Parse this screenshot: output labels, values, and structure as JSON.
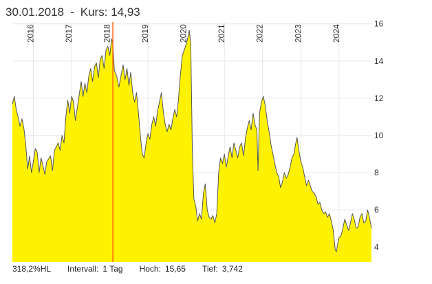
{
  "header": {
    "date": "30.01.2018",
    "separator": "-",
    "kurs_label": "Kurs:",
    "kurs_value": "14,93"
  },
  "footer": {
    "range_label": "318,2%HL",
    "interval_label": "Intervall:",
    "interval_value": "1 Tag",
    "high_label": "Hoch:",
    "high_value": "15,65",
    "low_label": "Tief:",
    "low_value": "3,742"
  },
  "colors": {
    "area_fill": "#fff200",
    "line": "#555555",
    "marker": "#ff6a13",
    "grid": "#e6e6e6"
  },
  "chart_data": {
    "type": "area",
    "title": "",
    "xlabel": "",
    "ylabel": "",
    "xlim": [
      2015.45,
      2024.85
    ],
    "ylim": [
      3.2,
      16.1
    ],
    "y_ticks": [
      "4",
      "6",
      "8",
      "10",
      "12",
      "14",
      "16"
    ],
    "x_ticks": [
      "2016",
      "2017",
      "2018",
      "2019",
      "2020",
      "2021",
      "2022",
      "2023",
      "2024"
    ],
    "marker": {
      "x": 2018.08,
      "label": "30.01.2018",
      "value": 14.93
    },
    "series": [
      {
        "points": [
          [
            2015.45,
            11.7
          ],
          [
            2015.5,
            12.1
          ],
          [
            2015.55,
            11.4
          ],
          [
            2015.6,
            11.0
          ],
          [
            2015.65,
            10.5
          ],
          [
            2015.7,
            10.9
          ],
          [
            2015.75,
            10.4
          ],
          [
            2015.8,
            9.5
          ],
          [
            2015.85,
            8.2
          ],
          [
            2015.9,
            8.9
          ],
          [
            2015.95,
            8.0
          ],
          [
            2016.0,
            8.6
          ],
          [
            2016.05,
            9.3
          ],
          [
            2016.1,
            9.1
          ],
          [
            2016.15,
            8.0
          ],
          [
            2016.2,
            8.8
          ],
          [
            2016.25,
            8.4
          ],
          [
            2016.3,
            7.9
          ],
          [
            2016.35,
            8.6
          ],
          [
            2016.45,
            8.9
          ],
          [
            2016.5,
            8.1
          ],
          [
            2016.55,
            9.2
          ],
          [
            2016.65,
            9.6
          ],
          [
            2016.7,
            9.2
          ],
          [
            2016.75,
            10.0
          ],
          [
            2016.8,
            9.6
          ],
          [
            2016.85,
            11.0
          ],
          [
            2016.9,
            11.9
          ],
          [
            2016.95,
            11.2
          ],
          [
            2017.0,
            12.1
          ],
          [
            2017.05,
            11.8
          ],
          [
            2017.1,
            10.8
          ],
          [
            2017.15,
            11.5
          ],
          [
            2017.2,
            12.2
          ],
          [
            2017.25,
            12.9
          ],
          [
            2017.3,
            12.1
          ],
          [
            2017.35,
            12.8
          ],
          [
            2017.4,
            12.3
          ],
          [
            2017.45,
            13.2
          ],
          [
            2017.5,
            13.6
          ],
          [
            2017.55,
            12.9
          ],
          [
            2017.6,
            13.7
          ],
          [
            2017.65,
            13.9
          ],
          [
            2017.7,
            13.1
          ],
          [
            2017.75,
            14.1
          ],
          [
            2017.8,
            14.3
          ],
          [
            2017.85,
            13.6
          ],
          [
            2017.9,
            14.6
          ],
          [
            2017.95,
            14.8
          ],
          [
            2018.0,
            14.3
          ],
          [
            2018.05,
            15.2
          ],
          [
            2018.08,
            14.93
          ],
          [
            2018.12,
            13.5
          ],
          [
            2018.18,
            13.2
          ],
          [
            2018.24,
            12.6
          ],
          [
            2018.3,
            13.3
          ],
          [
            2018.35,
            13.8
          ],
          [
            2018.4,
            13.0
          ],
          [
            2018.45,
            13.6
          ],
          [
            2018.5,
            12.7
          ],
          [
            2018.55,
            13.4
          ],
          [
            2018.6,
            12.3
          ],
          [
            2018.65,
            11.8
          ],
          [
            2018.7,
            12.3
          ],
          [
            2018.75,
            11.2
          ],
          [
            2018.8,
            10.0
          ],
          [
            2018.85,
            9.0
          ],
          [
            2018.9,
            8.8
          ],
          [
            2018.95,
            9.6
          ],
          [
            2019.0,
            10.1
          ],
          [
            2019.05,
            9.8
          ],
          [
            2019.1,
            10.6
          ],
          [
            2019.15,
            11.0
          ],
          [
            2019.2,
            10.5
          ],
          [
            2019.25,
            11.3
          ],
          [
            2019.3,
            11.8
          ],
          [
            2019.35,
            12.3
          ],
          [
            2019.4,
            11.3
          ],
          [
            2019.45,
            10.6
          ],
          [
            2019.5,
            10.2
          ],
          [
            2019.55,
            10.6
          ],
          [
            2019.6,
            10.3
          ],
          [
            2019.65,
            10.9
          ],
          [
            2019.7,
            11.4
          ],
          [
            2019.75,
            11.0
          ],
          [
            2019.8,
            12.0
          ],
          [
            2019.85,
            13.3
          ],
          [
            2019.9,
            14.3
          ],
          [
            2019.95,
            14.6
          ],
          [
            2020.0,
            14.9
          ],
          [
            2020.05,
            15.3
          ],
          [
            2020.08,
            15.65
          ],
          [
            2020.12,
            15.0
          ],
          [
            2020.16,
            9.2
          ],
          [
            2020.2,
            6.6
          ],
          [
            2020.25,
            6.2
          ],
          [
            2020.3,
            5.4
          ],
          [
            2020.35,
            5.8
          ],
          [
            2020.4,
            5.5
          ],
          [
            2020.45,
            6.9
          ],
          [
            2020.5,
            7.4
          ],
          [
            2020.55,
            6.0
          ],
          [
            2020.6,
            5.6
          ],
          [
            2020.65,
            5.5
          ],
          [
            2020.7,
            5.7
          ],
          [
            2020.75,
            5.3
          ],
          [
            2020.8,
            5.8
          ],
          [
            2020.85,
            8.0
          ],
          [
            2020.9,
            8.8
          ],
          [
            2020.95,
            8.5
          ],
          [
            2021.0,
            9.0
          ],
          [
            2021.05,
            8.3
          ],
          [
            2021.1,
            8.9
          ],
          [
            2021.15,
            9.4
          ],
          [
            2021.2,
            8.8
          ],
          [
            2021.25,
            9.6
          ],
          [
            2021.3,
            9.2
          ],
          [
            2021.35,
            8.8
          ],
          [
            2021.4,
            9.4
          ],
          [
            2021.45,
            9.6
          ],
          [
            2021.5,
            8.9
          ],
          [
            2021.55,
            9.8
          ],
          [
            2021.6,
            10.4
          ],
          [
            2021.65,
            10.8
          ],
          [
            2021.7,
            10.3
          ],
          [
            2021.75,
            11.2
          ],
          [
            2021.8,
            10.6
          ],
          [
            2021.85,
            10.3
          ],
          [
            2021.88,
            8.1
          ],
          [
            2021.92,
            11.2
          ],
          [
            2021.97,
            11.8
          ],
          [
            2022.02,
            12.1
          ],
          [
            2022.07,
            11.6
          ],
          [
            2022.12,
            10.8
          ],
          [
            2022.17,
            10.2
          ],
          [
            2022.22,
            9.5
          ],
          [
            2022.27,
            9.0
          ],
          [
            2022.32,
            8.5
          ],
          [
            2022.37,
            8.0
          ],
          [
            2022.42,
            7.8
          ],
          [
            2022.47,
            7.2
          ],
          [
            2022.52,
            7.5
          ],
          [
            2022.57,
            8.0
          ],
          [
            2022.62,
            7.7
          ],
          [
            2022.67,
            7.9
          ],
          [
            2022.72,
            8.3
          ],
          [
            2022.77,
            8.8
          ],
          [
            2022.82,
            9.0
          ],
          [
            2022.87,
            9.6
          ],
          [
            2022.9,
            9.9
          ],
          [
            2022.95,
            9.2
          ],
          [
            2023.0,
            8.6
          ],
          [
            2023.05,
            8.3
          ],
          [
            2023.1,
            7.8
          ],
          [
            2023.15,
            7.3
          ],
          [
            2023.2,
            7.6
          ],
          [
            2023.25,
            7.3
          ],
          [
            2023.3,
            7.0
          ],
          [
            2023.35,
            6.9
          ],
          [
            2023.4,
            6.7
          ],
          [
            2023.45,
            6.3
          ],
          [
            2023.5,
            6.4
          ],
          [
            2023.55,
            6.0
          ],
          [
            2023.6,
            5.8
          ],
          [
            2023.65,
            5.9
          ],
          [
            2023.7,
            5.6
          ],
          [
            2023.75,
            5.8
          ],
          [
            2023.8,
            5.4
          ],
          [
            2023.85,
            4.9
          ],
          [
            2023.9,
            3.9
          ],
          [
            2023.93,
            3.742
          ],
          [
            2023.97,
            4.2
          ],
          [
            2024.0,
            4.5
          ],
          [
            2024.05,
            4.6
          ],
          [
            2024.1,
            5.0
          ],
          [
            2024.15,
            5.5
          ],
          [
            2024.2,
            5.2
          ],
          [
            2024.25,
            4.9
          ],
          [
            2024.3,
            5.3
          ],
          [
            2024.35,
            5.8
          ],
          [
            2024.4,
            5.5
          ],
          [
            2024.45,
            5.0
          ],
          [
            2024.5,
            5.1
          ],
          [
            2024.55,
            5.6
          ],
          [
            2024.6,
            5.8
          ],
          [
            2024.65,
            5.3
          ],
          [
            2024.7,
            5.4
          ],
          [
            2024.75,
            6.0
          ],
          [
            2024.8,
            5.6
          ],
          [
            2024.85,
            5.0
          ]
        ]
      }
    ]
  }
}
